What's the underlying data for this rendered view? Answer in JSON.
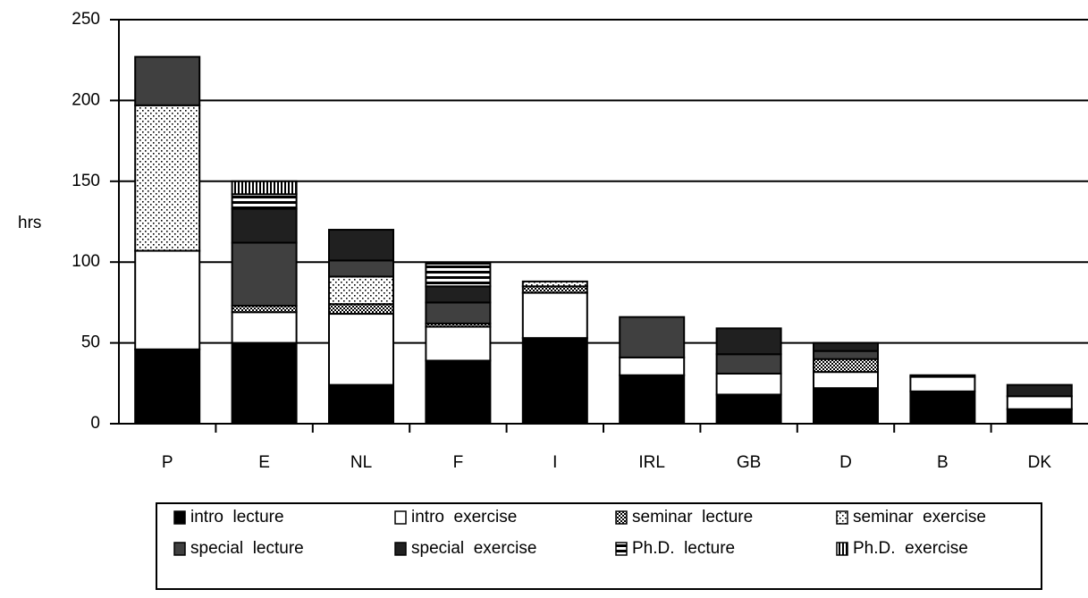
{
  "chart_data": {
    "type": "stacked_bar",
    "y_label": "hrs",
    "categories": [
      "P",
      "E",
      "NL",
      "F",
      "I",
      "IRL",
      "GB",
      "D",
      "B",
      "DK"
    ],
    "series": [
      {
        "name": "intro  lecture",
        "color": "#000000",
        "pattern": "solid",
        "values": [
          46,
          50,
          24,
          39,
          53,
          30,
          18,
          22,
          20,
          9
        ]
      },
      {
        "name": "intro  exercise",
        "color": "#ffffff",
        "pattern": "solid",
        "values": [
          61,
          19,
          44,
          21,
          28,
          11,
          13,
          10,
          9,
          8
        ]
      },
      {
        "name": "seminar  lecture",
        "color": "#000000",
        "pattern": "checker",
        "values": [
          0,
          4,
          6,
          2,
          4,
          0,
          0,
          8,
          0,
          0
        ]
      },
      {
        "name": "seminar  exercise",
        "color": "#000000",
        "pattern": "dots",
        "values": [
          90,
          0,
          17,
          0,
          3,
          0,
          0,
          0,
          0,
          0
        ]
      },
      {
        "name": "special  lecture",
        "color": "#404040",
        "pattern": "solid",
        "values": [
          30,
          39,
          10,
          13,
          0,
          25,
          12,
          5,
          0,
          0
        ]
      },
      {
        "name": "special  exercise",
        "color": "#202020",
        "pattern": "solid",
        "values": [
          0,
          21,
          19,
          10,
          0,
          0,
          16,
          5,
          1,
          7
        ]
      },
      {
        "name": "Ph.D.  lecture",
        "color": "#000000",
        "pattern": "hstripes",
        "values": [
          0,
          9,
          0,
          14,
          0,
          0,
          0,
          0,
          0,
          0
        ]
      },
      {
        "name": "Ph.D.  exercise",
        "color": "#000000",
        "pattern": "vstripes",
        "values": [
          0,
          8,
          0,
          0,
          0,
          0,
          0,
          0,
          0,
          0
        ]
      }
    ],
    "ylim": [
      0,
      250
    ],
    "yticks": [
      0,
      50,
      100,
      150,
      200,
      250
    ],
    "grid": true,
    "legend": "bottom"
  }
}
